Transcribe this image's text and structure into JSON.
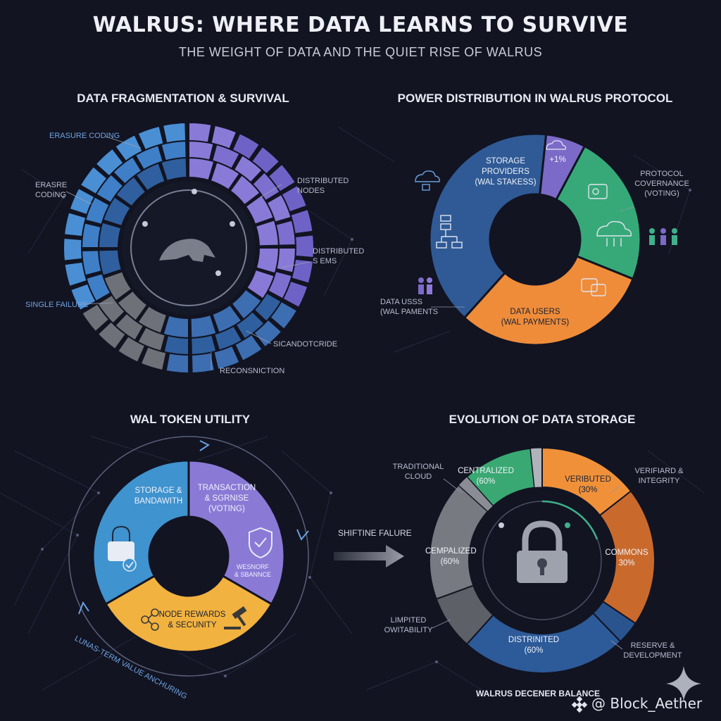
{
  "header": {
    "title": "WALRUS: WHERE DATA LEARNS TO SURVIVE",
    "subtitle": "THE WEIGHT OF DATA AND THE QUIET RISE OF WALRUS"
  },
  "panel1": {
    "title": "DATA FRAGMENTATION & SURVIVAL",
    "labels": {
      "erasure_top": "ERASURE CODING",
      "erasure_left": "ERASRE\nCODING",
      "single_failure": "SINGLE FAILURE",
      "distributed_nodes": "DISTRIBUTED\nNODES",
      "distributed_systems": "DISTRIBUTED\nS EMS",
      "storage": "SICANDOTCRIDE",
      "reconstruction": "RECONSNICTION"
    },
    "colors": {
      "blue": "#3f7fc8",
      "purple": "#7d6fd0",
      "gray": "#6e7178",
      "deep": "#2f5f9e"
    }
  },
  "panel2": {
    "title": "POWER DISTRIBUTION IN WALRUS PROTOCOL",
    "segments": {
      "storage": "STORAGE\nPROVIDERS\n(WAL STAKESS)",
      "purple_pct": "+1%",
      "users": "DATA USERS\n(WAL PAYMENTS)"
    },
    "labels": {
      "governance": "PROTOCOL\nCOVERNANCE\n(VOTING)",
      "data_uses": "DATA USSS\n(WAL PAMENTS"
    },
    "colors": {
      "storage": "#2f5a96",
      "purple": "#7c6ac8",
      "green": "#37a979",
      "orange": "#ef8c3a"
    }
  },
  "panel3": {
    "title": "WAL TOKEN UTILITY",
    "segments": {
      "storage": "STORAGE &\nBANDAWITH",
      "transaction": "TRANSACTION\n& SGRNISE\n(VOTING)",
      "governance": "WESNORF\n& SBANNCE",
      "rewards": "NODE REWARDS\n& SECUNITY"
    },
    "ring_label": "LUNAS-TERM VALUE ANCHURING",
    "colors": {
      "blue": "#3f93cf",
      "purple": "#8a7ad6",
      "yellow": "#f2b23f"
    }
  },
  "arrow": {
    "label": "SHIFTINE FALURE"
  },
  "panel4": {
    "title": "EVOLUTION OF DATA STORAGE",
    "segments": {
      "centralized": "CENTRALIZED\n(60%",
      "verified": "VERIBUTED\n(30%",
      "commons": "COMMONS\n30%",
      "distributed": "DISTRINITED\n(60%",
      "gray": "CEMPALIZED\n(60%"
    },
    "labels": {
      "traditional": "TRADITIONAL\nCLOUD",
      "verified_integrity": "VERIFIARD &\nINTEGRITY",
      "limited": "LIMPITED\nOWITABILITY",
      "reserve": "RESERVE &\nDEVELOPMENT"
    },
    "caption": "WALRUS DECENER BALANCE",
    "colors": {
      "green": "#39a872",
      "orange": "#f0913a",
      "darkorange": "#c96a2c",
      "gray": "#777a80",
      "blue": "#2d5a98"
    }
  },
  "watermark": "@ Block_Aether"
}
